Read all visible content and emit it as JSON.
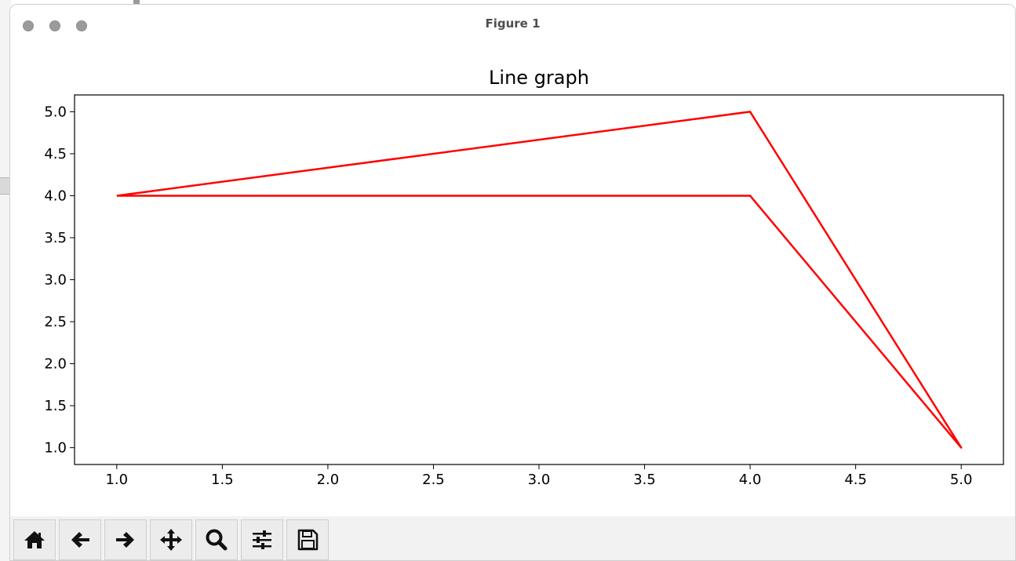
{
  "window": {
    "title": "Figure 1"
  },
  "toolbar": {
    "buttons": [
      {
        "icon": "home-icon"
      },
      {
        "icon": "back-arrow-icon"
      },
      {
        "icon": "forward-arrow-icon"
      },
      {
        "icon": "pan-move-icon"
      },
      {
        "icon": "zoom-magnifier-icon"
      },
      {
        "icon": "configure-subplots-icon"
      },
      {
        "icon": "save-floppy-icon"
      }
    ]
  },
  "chart_data": {
    "type": "line",
    "title": "Line graph",
    "xlabel": "",
    "ylabel": "",
    "x": [
      1,
      4,
      5,
      4,
      1
    ],
    "series": [
      {
        "values": [
          4.0,
          4.0,
          1.0,
          5.0,
          4.0
        ],
        "color": "#ff0000"
      }
    ],
    "xlim": [
      0.8,
      5.2
    ],
    "ylim": [
      0.8,
      5.2
    ],
    "xticks": [
      "1.0",
      "1.5",
      "2.0",
      "2.5",
      "3.0",
      "3.5",
      "4.0",
      "4.5",
      "5.0"
    ],
    "yticks": [
      "1.0",
      "1.5",
      "2.0",
      "2.5",
      "3.0",
      "3.5",
      "4.0",
      "4.5",
      "5.0"
    ],
    "grid": false,
    "legend": "none"
  }
}
